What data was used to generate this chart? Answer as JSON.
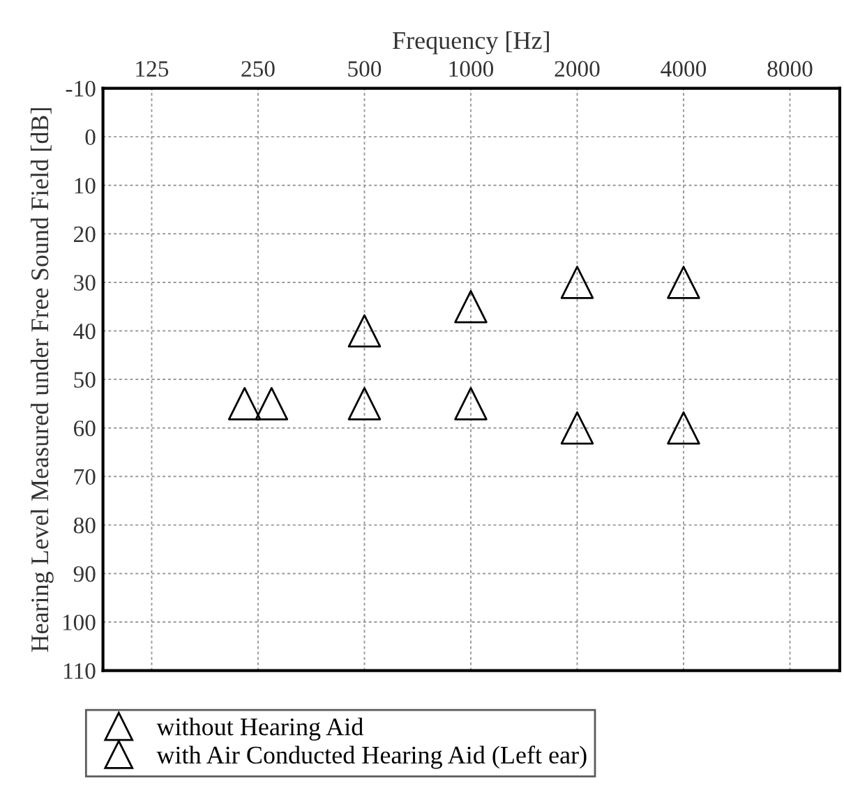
{
  "chart_data": {
    "type": "scatter",
    "xlabel": "Frequency [Hz]",
    "ylabel": "Hearing Level Measured under Free Sound Field [dB]",
    "log": "x",
    "xlim": [
      91,
      11070
    ],
    "xticks": [
      125,
      250,
      500,
      1000,
      2000,
      4000,
      8000
    ],
    "ylim": [
      110,
      -10
    ],
    "yticks": [
      -10,
      0,
      10,
      20,
      30,
      40,
      50,
      60,
      70,
      80,
      90,
      100,
      110
    ],
    "grid": true,
    "legend": "bottom",
    "marker": "triangle",
    "series": [
      {
        "name": "without Hearing Aid",
        "color": "#000000",
        "x": [
          229,
          500,
          1000,
          2000,
          4000
        ],
        "values": [
          55,
          55,
          55,
          60,
          60
        ]
      },
      {
        "name": "with Air Conducted Hearing Aid (Left ear)",
        "color": "#000000",
        "x": [
          273,
          500,
          1000,
          2000,
          4000
        ],
        "values": [
          55,
          40,
          35,
          30,
          30
        ]
      }
    ]
  }
}
